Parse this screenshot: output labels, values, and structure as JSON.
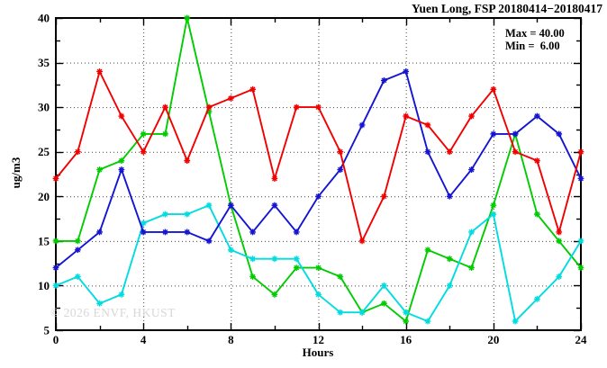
{
  "title": "Yuen Long, FSP 20180414−20180417",
  "annotation": {
    "max_label": "Max = 40.00",
    "min_label": "Min =  6.00"
  },
  "watermark": "© 2026 ENVF, HKUST",
  "chart_data": {
    "type": "line",
    "title": "Yuen Long, FSP 20180414−20180417",
    "xlabel": "Hours",
    "ylabel": "ug/m3",
    "xlim": [
      0,
      24
    ],
    "ylim": [
      5,
      40
    ],
    "xticks_major": [
      0,
      4,
      8,
      12,
      16,
      20,
      24
    ],
    "xticks_minor": [
      2,
      6,
      10,
      14,
      18,
      22
    ],
    "yticks_major": [
      5,
      10,
      15,
      20,
      25,
      30,
      35,
      40
    ],
    "yticks_minor": [
      7.5,
      12.5,
      17.5,
      22.5,
      27.5,
      32.5,
      37.5
    ],
    "grid": true,
    "legend": "none",
    "marker": "asterisk",
    "stats": {
      "max": 40.0,
      "min": 6.0
    },
    "x": [
      0,
      1,
      2,
      3,
      4,
      5,
      6,
      7,
      8,
      9,
      10,
      11,
      12,
      13,
      14,
      15,
      16,
      17,
      18,
      19,
      20,
      21,
      22,
      23,
      24
    ],
    "series": [
      {
        "name": "green",
        "color": "#00cc00",
        "values": [
          15,
          15,
          23,
          24,
          27,
          27,
          40,
          29.5,
          19,
          11,
          9,
          12,
          12,
          11,
          7,
          8,
          6,
          14,
          13,
          12,
          19,
          27,
          18,
          15,
          12
        ]
      },
      {
        "name": "cyan",
        "color": "#00dce0",
        "values": [
          10,
          11,
          8,
          9,
          17,
          18,
          18,
          19,
          14,
          13,
          13,
          13,
          9,
          7,
          7,
          10,
          7,
          6,
          10,
          16,
          18,
          6,
          8.5,
          11,
          15
        ]
      },
      {
        "name": "blue",
        "color": "#1414d2",
        "values": [
          12,
          14,
          16,
          23,
          16,
          16,
          16,
          15,
          19,
          16,
          19,
          16,
          20,
          23,
          28,
          33,
          34,
          25,
          20,
          23,
          27,
          27,
          29,
          27,
          22
        ]
      },
      {
        "name": "red",
        "color": "#f20000",
        "values": [
          22,
          25,
          34,
          29,
          25,
          30,
          24,
          30,
          31,
          32,
          22,
          30,
          30,
          25,
          15,
          20,
          29,
          28,
          25,
          29,
          32,
          25,
          24,
          16,
          25
        ]
      }
    ]
  },
  "colors": {
    "frame": "#000000",
    "grid": "#444444",
    "background": "#ffffff",
    "watermark_gray": "#d7d7d7"
  }
}
